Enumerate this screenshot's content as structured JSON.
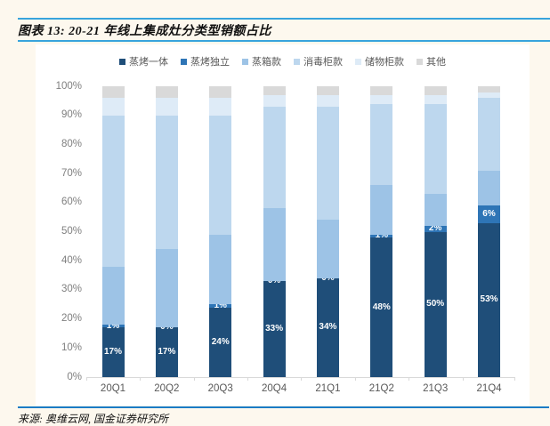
{
  "page": {
    "title": "图表 13: 20-21 年线上集成灶分类型销额占比",
    "source": "来源: 奥维云网, 国金证券研究所",
    "colors": {
      "background": "#FDF8EE",
      "panel": "#FFFFFF",
      "title_rules": "#38A4DC",
      "source_rule": "#1B7CC5",
      "axis_line": "#D9D9D9",
      "y_axis_text": "#7F7F7F",
      "x_axis_text": "#595959",
      "legend_text": "#595959",
      "data_label_text": "#FFFFFF"
    }
  },
  "chart_data": {
    "type": "bar",
    "stacked": true,
    "unit": "%",
    "title": "图表 13: 20-21 年线上集成灶分类型销额占比",
    "categories": [
      "20Q1",
      "20Q2",
      "20Q3",
      "20Q4",
      "21Q1",
      "21Q2",
      "21Q3",
      "21Q4"
    ],
    "series": [
      {
        "name": "蒸烤一体",
        "color": "#1F4E79",
        "values": [
          17,
          17,
          24,
          33,
          34,
          48,
          50,
          53
        ],
        "labels": [
          "17%",
          "17%",
          "24%",
          "33%",
          "34%",
          "48%",
          "50%",
          "53%"
        ]
      },
      {
        "name": "蒸烤独立",
        "color": "#2E75B6",
        "values": [
          1,
          0,
          1,
          0,
          0,
          1,
          2,
          6
        ],
        "labels": [
          "1%",
          "0%",
          "1%",
          "0%",
          "0%",
          "1%",
          "2%",
          "6%"
        ]
      },
      {
        "name": "蒸箱款",
        "color": "#9DC3E6",
        "values": [
          20,
          27,
          24,
          25,
          20,
          17,
          11,
          12
        ]
      },
      {
        "name": "消毒柜款",
        "color": "#BDD7EE",
        "values": [
          52,
          46,
          41,
          35,
          39,
          28,
          31,
          25
        ]
      },
      {
        "name": "储物柜款",
        "color": "#DEEBF7",
        "values": [
          6,
          6,
          6,
          4,
          4,
          3,
          3,
          2
        ]
      },
      {
        "name": "其他",
        "color": "#D9D9D9",
        "values": [
          4,
          4,
          4,
          3,
          3,
          3,
          3,
          2
        ]
      }
    ],
    "y_axis": {
      "min": 0,
      "max": 100,
      "step": 10,
      "tick_labels": [
        "0%",
        "10%",
        "20%",
        "30%",
        "40%",
        "50%",
        "60%",
        "70%",
        "80%",
        "90%",
        "100%"
      ]
    },
    "legend_position": "top",
    "gridlines": false,
    "data_labels_on_series": [
      "蒸烤一体",
      "蒸烤独立"
    ]
  }
}
